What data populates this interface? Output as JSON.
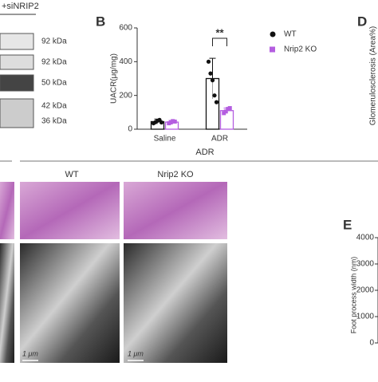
{
  "blot": {
    "label": "+siNRIP2",
    "markers": [
      "92 kDa",
      "92 kDa",
      "50 kDa",
      "42 kDa",
      "36 kDa"
    ]
  },
  "chart_data": {
    "type": "bar",
    "panel_label": "B",
    "y_label": "UACR(μg/mg)",
    "categories": [
      "Saline",
      "ADR"
    ],
    "ylim": [
      0,
      600
    ],
    "yticks": [
      0,
      200,
      400,
      600
    ],
    "series": [
      {
        "name": "WT",
        "color": "#111111",
        "values": [
          45,
          300
        ],
        "errors": [
          15,
          120
        ],
        "points": [
          [
            35,
            42,
            50,
            55,
            40
          ],
          [
            400,
            330,
            290,
            200,
            160
          ]
        ]
      },
      {
        "name": "Nrip2 KO",
        "color": "#b45ee0",
        "values": [
          42,
          110
        ],
        "errors": [
          10,
          15
        ],
        "points": [
          [
            35,
            40,
            48,
            45
          ],
          [
            95,
            105,
            120,
            125
          ]
        ]
      }
    ],
    "significance": "**"
  },
  "panel_d": {
    "label": "D",
    "y_label": "Glomerulosclerosis (Area%)"
  },
  "histology": {
    "group": "ADR",
    "columns": [
      "WT",
      "Nrip2 KO"
    ],
    "scale_bars": [
      "1 μm",
      "1 μm"
    ]
  },
  "panel_e": {
    "label": "E",
    "y_label": "Foot process width (nm)",
    "yticks": [
      4000,
      3000,
      2000,
      1000,
      0
    ]
  }
}
